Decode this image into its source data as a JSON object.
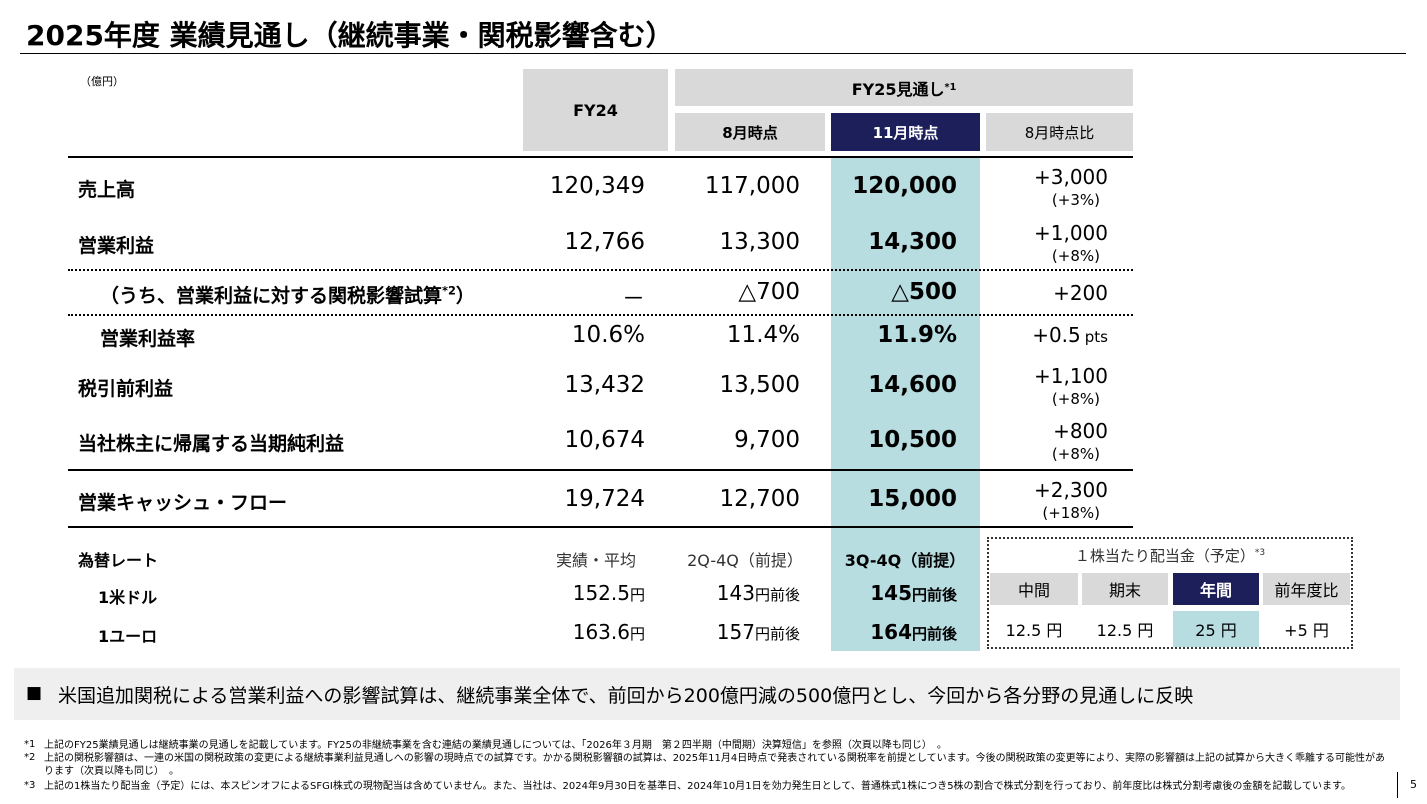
{
  "title": "2025年度 業績見通し（継続事業・関税影響含む）",
  "unit": "（億円）",
  "header": {
    "fy24": "FY24",
    "fy25": "FY25見通し",
    "fy25_note": "*1",
    "aug": "8月時点",
    "nov": "11月時点",
    "diff": "8月時点比"
  },
  "rows": [
    {
      "label": "売上高",
      "fy24": "120,349",
      "aug": "117,000",
      "nov": "120,000",
      "diff": "+3,000",
      "diff_pct": "(+3%)"
    },
    {
      "label": "営業利益",
      "fy24": "12,766",
      "aug": "13,300",
      "nov": "14,300",
      "diff": "+1,000",
      "diff_pct": "(+8%)"
    },
    {
      "label": "（うち、営業利益に対する関税影響試算",
      "label_sup": "*2",
      "label_tail": "）",
      "fy24": "－",
      "aug": "△700",
      "nov": "△500",
      "diff": "+200"
    },
    {
      "label": "営業利益率",
      "fy24": "10.6%",
      "aug": "11.4%",
      "nov": "11.9%",
      "diff": "+0.5",
      "diff_unit": "pts"
    },
    {
      "label": "税引前利益",
      "fy24": "13,432",
      "aug": "13,500",
      "nov": "14,600",
      "diff": "+1,100",
      "diff_pct": "(+8%)"
    },
    {
      "label": "当社株主に帰属する当期純利益",
      "fy24": "10,674",
      "aug": "9,700",
      "nov": "10,500",
      "diff": "+800",
      "diff_pct": "(+8%)"
    },
    {
      "label": "営業キャッシュ・フロー",
      "fy24": "19,724",
      "aug": "12,700",
      "nov": "15,000",
      "diff": "+2,300",
      "diff_pct": "(+18%)"
    }
  ],
  "fx": {
    "label": "為替レート",
    "headers": [
      "実績・平均",
      "2Q-4Q（前提）",
      "3Q-4Q（前提）"
    ],
    "rows": [
      {
        "label": "1米ドル",
        "values": [
          [
            "152.5",
            "円"
          ],
          [
            "143",
            "円前後"
          ],
          [
            "145",
            "円前後"
          ]
        ]
      },
      {
        "label": "1ユーロ",
        "values": [
          [
            "163.6",
            "円"
          ],
          [
            "157",
            "円前後"
          ],
          [
            "164",
            "円前後"
          ]
        ]
      }
    ]
  },
  "dividend": {
    "title": "１株当たり配当金（予定）",
    "title_note": "*3",
    "headers": [
      "中間",
      "期末",
      "年間",
      "前年度比"
    ],
    "values": [
      "12.5 円",
      "12.5 円",
      "25 円",
      "+5 円"
    ]
  },
  "summary": {
    "bullet": "■",
    "text": "米国追加関税による営業利益への影響試算は、継続事業全体で、前回から200億円減の500億円とし、今回から各分野の見通しに反映"
  },
  "footnotes": [
    {
      "mark": "*1",
      "text": "上記のFY25業績見通しは継続事業の見通しを記載しています。FY25の非継続事業を含む連結の業績見通しについては、「2026年３月期　第２四半期（中間期）決算短信」を参照（次頁以降も同じ）　。"
    },
    {
      "mark": "*2",
      "text": "上記の関税影響額は、一連の米国の関税政策の変更による継続事業利益見通しへの影響の現時点での試算です。かかる関税影響額の試算は、2025年11月4日時点で発表されている関税率を前提としています。今後の関税政策の変更等により、実際の影響額は上記の試算から大きく乖離する可能性があります（次頁以降も同じ）　。"
    },
    {
      "mark": "*3",
      "text": "上記の1株当たり配当金（予定）には、本スピンオフによるSFGI株式の現物配当は含めていません。また、当社は、2024年9月30日を基準日、2024年10月1日を効力発生日として、普通株式1株につき5株の割合で株式分割を行っており、前年度比は株式分割考慮後の金額を記載しています。"
    }
  ],
  "page_number": "5"
}
